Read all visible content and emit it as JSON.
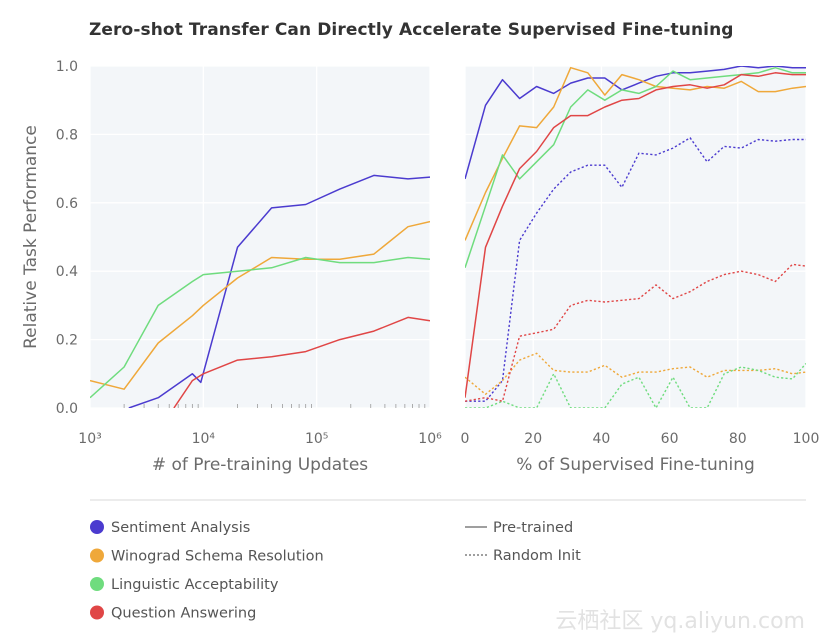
{
  "title": "Zero-shot Transfer Can Directly Accelerate Supervised Fine-tuning",
  "watermark": "云栖社区 yq.aliyun.com",
  "colors": {
    "Sentiment Analysis": "#4b3bcf",
    "Winograd Schema Resolution": "#efa83a",
    "Linguistic Acceptability": "#6fdc7e",
    "Question Answering": "#e04646",
    "panel_bg": "#f3f6f9",
    "grid": "#ffffff"
  },
  "legend": {
    "tasks": [
      "Sentiment Analysis",
      "Winograd Schema Resolution",
      "Linguistic Acceptability",
      "Question Answering"
    ],
    "styles": [
      "Pre-trained",
      "Random Init"
    ]
  },
  "chart_data": [
    {
      "type": "line",
      "xlabel": "# of Pre-training Updates",
      "ylabel": "Relative Task Performance",
      "xscale": "log",
      "xlim": [
        1000,
        1000000
      ],
      "ylim": [
        0,
        1
      ],
      "xticks": [
        {
          "value": 1000,
          "label": "10³"
        },
        {
          "value": 10000,
          "label": "10⁴"
        },
        {
          "value": 100000,
          "label": "10⁵"
        },
        {
          "value": 1000000,
          "label": "10⁶"
        }
      ],
      "yticks": [
        "0.0",
        "0.2",
        "0.4",
        "0.6",
        "0.8",
        "1.0"
      ],
      "grid": true,
      "series": [
        {
          "name": "Sentiment Analysis",
          "style": "solid",
          "points": [
            [
              2200,
              0.0
            ],
            [
              4000,
              0.03
            ],
            [
              8000,
              0.1
            ],
            [
              9500,
              0.075
            ],
            [
              20000,
              0.47
            ],
            [
              40000,
              0.585
            ],
            [
              80000,
              0.595
            ],
            [
              160000,
              0.64
            ],
            [
              320000,
              0.68
            ],
            [
              640000,
              0.67
            ],
            [
              1000000,
              0.675
            ]
          ]
        },
        {
          "name": "Winograd Schema Resolution",
          "style": "solid",
          "points": [
            [
              1000,
              0.08
            ],
            [
              2000,
              0.055
            ],
            [
              4000,
              0.19
            ],
            [
              8000,
              0.27
            ],
            [
              10000,
              0.3
            ],
            [
              20000,
              0.38
            ],
            [
              40000,
              0.44
            ],
            [
              80000,
              0.435
            ],
            [
              160000,
              0.435
            ],
            [
              320000,
              0.45
            ],
            [
              640000,
              0.53
            ],
            [
              1000000,
              0.545
            ]
          ]
        },
        {
          "name": "Linguistic Acceptability",
          "style": "solid",
          "points": [
            [
              1000,
              0.03
            ],
            [
              2000,
              0.12
            ],
            [
              4000,
              0.3
            ],
            [
              8000,
              0.37
            ],
            [
              10000,
              0.39
            ],
            [
              20000,
              0.4
            ],
            [
              40000,
              0.41
            ],
            [
              80000,
              0.44
            ],
            [
              160000,
              0.425
            ],
            [
              320000,
              0.425
            ],
            [
              640000,
              0.44
            ],
            [
              1000000,
              0.435
            ]
          ]
        },
        {
          "name": "Question Answering",
          "style": "solid",
          "points": [
            [
              5500,
              0.0
            ],
            [
              8000,
              0.08
            ],
            [
              10000,
              0.1
            ],
            [
              20000,
              0.14
            ],
            [
              40000,
              0.15
            ],
            [
              80000,
              0.165
            ],
            [
              160000,
              0.2
            ],
            [
              320000,
              0.225
            ],
            [
              640000,
              0.265
            ],
            [
              1000000,
              0.255
            ]
          ]
        }
      ]
    },
    {
      "type": "line",
      "xlabel": "% of Supervised Fine-tuning",
      "xlim": [
        0,
        100
      ],
      "ylim": [
        0,
        1
      ],
      "xticks": [
        {
          "value": 0,
          "label": "0"
        },
        {
          "value": 20,
          "label": "20"
        },
        {
          "value": 40,
          "label": "40"
        },
        {
          "value": 60,
          "label": "60"
        },
        {
          "value": 80,
          "label": "80"
        },
        {
          "value": 100,
          "label": "100"
        }
      ],
      "grid": true,
      "series": [
        {
          "name": "Sentiment Analysis",
          "style": "solid",
          "points": [
            [
              0,
              0.67
            ],
            [
              6,
              0.885
            ],
            [
              11,
              0.96
            ],
            [
              16,
              0.905
            ],
            [
              21,
              0.94
            ],
            [
              26,
              0.92
            ],
            [
              31,
              0.95
            ],
            [
              36,
              0.965
            ],
            [
              41,
              0.965
            ],
            [
              46,
              0.93
            ],
            [
              51,
              0.95
            ],
            [
              56,
              0.97
            ],
            [
              61,
              0.98
            ],
            [
              66,
              0.98
            ],
            [
              71,
              0.985
            ],
            [
              76,
              0.99
            ],
            [
              81,
              1.0
            ],
            [
              86,
              0.995
            ],
            [
              91,
              1.0
            ],
            [
              96,
              0.995
            ],
            [
              100,
              0.995
            ]
          ]
        },
        {
          "name": "Winograd Schema Resolution",
          "style": "solid",
          "points": [
            [
              0,
              0.49
            ],
            [
              6,
              0.63
            ],
            [
              11,
              0.73
            ],
            [
              16,
              0.825
            ],
            [
              21,
              0.82
            ],
            [
              26,
              0.88
            ],
            [
              31,
              0.995
            ],
            [
              36,
              0.98
            ],
            [
              41,
              0.915
            ],
            [
              46,
              0.975
            ],
            [
              51,
              0.96
            ],
            [
              56,
              0.94
            ],
            [
              61,
              0.935
            ],
            [
              66,
              0.93
            ],
            [
              71,
              0.94
            ],
            [
              76,
              0.935
            ],
            [
              81,
              0.955
            ],
            [
              86,
              0.925
            ],
            [
              91,
              0.925
            ],
            [
              96,
              0.935
            ],
            [
              100,
              0.94
            ]
          ]
        },
        {
          "name": "Linguistic Acceptability",
          "style": "solid",
          "points": [
            [
              0,
              0.41
            ],
            [
              6,
              0.59
            ],
            [
              11,
              0.74
            ],
            [
              16,
              0.67
            ],
            [
              21,
              0.72
            ],
            [
              26,
              0.77
            ],
            [
              31,
              0.88
            ],
            [
              36,
              0.93
            ],
            [
              41,
              0.9
            ],
            [
              46,
              0.93
            ],
            [
              51,
              0.92
            ],
            [
              56,
              0.94
            ],
            [
              61,
              0.985
            ],
            [
              66,
              0.96
            ],
            [
              71,
              0.965
            ],
            [
              76,
              0.97
            ],
            [
              81,
              0.975
            ],
            [
              86,
              0.98
            ],
            [
              91,
              0.995
            ],
            [
              96,
              0.98
            ],
            [
              100,
              0.98
            ]
          ]
        },
        {
          "name": "Question Answering",
          "style": "solid",
          "points": [
            [
              0,
              0.03
            ],
            [
              6,
              0.47
            ],
            [
              11,
              0.59
            ],
            [
              16,
              0.7
            ],
            [
              21,
              0.75
            ],
            [
              26,
              0.82
            ],
            [
              31,
              0.855
            ],
            [
              36,
              0.855
            ],
            [
              41,
              0.88
            ],
            [
              46,
              0.9
            ],
            [
              51,
              0.905
            ],
            [
              56,
              0.93
            ],
            [
              61,
              0.94
            ],
            [
              66,
              0.945
            ],
            [
              71,
              0.935
            ],
            [
              76,
              0.945
            ],
            [
              81,
              0.975
            ],
            [
              86,
              0.97
            ],
            [
              91,
              0.98
            ],
            [
              96,
              0.975
            ],
            [
              100,
              0.975
            ]
          ]
        },
        {
          "name": "Sentiment Analysis",
          "style": "dotted",
          "points": [
            [
              0,
              0.02
            ],
            [
              6,
              0.02
            ],
            [
              11,
              0.08
            ],
            [
              16,
              0.49
            ],
            [
              21,
              0.57
            ],
            [
              26,
              0.64
            ],
            [
              31,
              0.69
            ],
            [
              36,
              0.71
            ],
            [
              41,
              0.71
            ],
            [
              46,
              0.645
            ],
            [
              51,
              0.745
            ],
            [
              56,
              0.74
            ],
            [
              61,
              0.76
            ],
            [
              66,
              0.79
            ],
            [
              71,
              0.72
            ],
            [
              76,
              0.765
            ],
            [
              81,
              0.76
            ],
            [
              86,
              0.785
            ],
            [
              91,
              0.78
            ],
            [
              96,
              0.785
            ],
            [
              100,
              0.785
            ]
          ]
        },
        {
          "name": "Winograd Schema Resolution",
          "style": "dotted",
          "points": [
            [
              0,
              0.09
            ],
            [
              6,
              0.04
            ],
            [
              11,
              0.08
            ],
            [
              16,
              0.14
            ],
            [
              21,
              0.16
            ],
            [
              26,
              0.11
            ],
            [
              31,
              0.105
            ],
            [
              36,
              0.105
            ],
            [
              41,
              0.125
            ],
            [
              46,
              0.09
            ],
            [
              51,
              0.105
            ],
            [
              56,
              0.105
            ],
            [
              61,
              0.115
            ],
            [
              66,
              0.12
            ],
            [
              71,
              0.09
            ],
            [
              76,
              0.11
            ],
            [
              81,
              0.11
            ],
            [
              86,
              0.11
            ],
            [
              91,
              0.115
            ],
            [
              96,
              0.1
            ],
            [
              100,
              0.105
            ]
          ]
        },
        {
          "name": "Linguistic Acceptability",
          "style": "dotted",
          "points": [
            [
              0,
              0.0
            ],
            [
              6,
              0.0
            ],
            [
              11,
              0.02
            ],
            [
              16,
              0.0
            ],
            [
              21,
              0.0
            ],
            [
              26,
              0.1
            ],
            [
              31,
              0.0
            ],
            [
              36,
              0.0
            ],
            [
              41,
              0.0
            ],
            [
              46,
              0.07
            ],
            [
              51,
              0.09
            ],
            [
              56,
              0.0
            ],
            [
              61,
              0.09
            ],
            [
              66,
              0.0
            ],
            [
              71,
              0.0
            ],
            [
              76,
              0.1
            ],
            [
              81,
              0.12
            ],
            [
              86,
              0.11
            ],
            [
              91,
              0.09
            ],
            [
              96,
              0.085
            ],
            [
              100,
              0.13
            ]
          ]
        },
        {
          "name": "Question Answering",
          "style": "dotted",
          "points": [
            [
              0,
              0.02
            ],
            [
              6,
              0.03
            ],
            [
              11,
              0.02
            ],
            [
              16,
              0.21
            ],
            [
              21,
              0.22
            ],
            [
              26,
              0.23
            ],
            [
              31,
              0.3
            ],
            [
              36,
              0.315
            ],
            [
              41,
              0.31
            ],
            [
              46,
              0.315
            ],
            [
              51,
              0.32
            ],
            [
              56,
              0.36
            ],
            [
              61,
              0.32
            ],
            [
              66,
              0.34
            ],
            [
              71,
              0.37
            ],
            [
              76,
              0.39
            ],
            [
              81,
              0.4
            ],
            [
              86,
              0.39
            ],
            [
              91,
              0.37
            ],
            [
              96,
              0.42
            ],
            [
              100,
              0.415
            ]
          ]
        }
      ]
    }
  ]
}
